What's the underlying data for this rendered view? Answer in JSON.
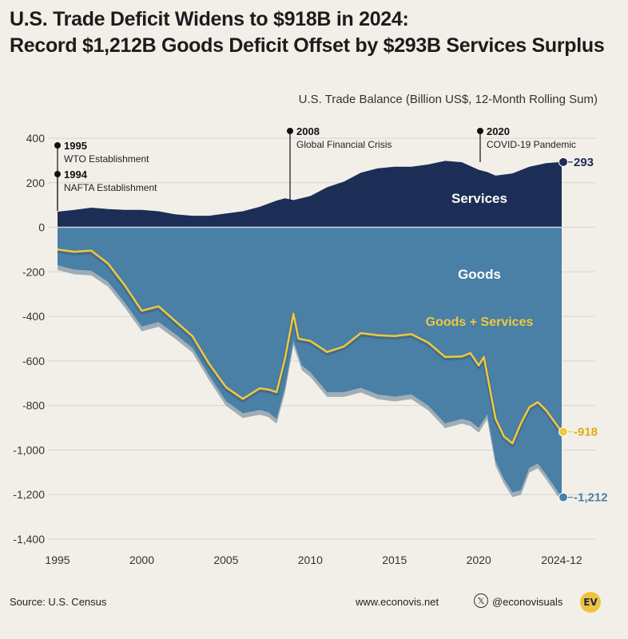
{
  "title_line1": "U.S. Trade Deficit Widens to $918B in 2024:",
  "title_line2": "Record $1,212B Goods Deficit Offset by $293B Services Surplus",
  "footer": {
    "source": "Source: U.S. Census",
    "website": "www.econovis.net",
    "handle": "@econovisuals",
    "logo_text": "EV",
    "x_icon": "x-logo-icon"
  },
  "colors": {
    "background": "#f2efe9",
    "services": "#1c2e56",
    "goods": "#4a7fa6",
    "goods_plus_services": "#f0c93c"
  },
  "chart_data": {
    "type": "area",
    "title": "",
    "subtitle": "U.S. Trade Balance (Billion US$, 12-Month Rolling Sum)",
    "xlabel": "",
    "ylabel": "",
    "xlim": [
      1995,
      2024.92
    ],
    "ylim": [
      -1400,
      400
    ],
    "x_ticks": [
      1995,
      2000,
      2005,
      2010,
      2015,
      2020,
      2024.92
    ],
    "x_tick_labels": [
      "1995",
      "2000",
      "2005",
      "2010",
      "2015",
      "2020",
      "2024-12"
    ],
    "y_ticks": [
      400,
      200,
      0,
      -200,
      -400,
      -600,
      -800,
      -1000,
      -1200,
      -1400
    ],
    "y_tick_labels": [
      "400",
      "200",
      "0",
      "-200",
      "-400",
      "-600",
      "-800",
      "-1,000",
      "-1,200",
      "-1,400"
    ],
    "series": [
      {
        "name": "Services",
        "x": [
          1995,
          1996,
          1997,
          1998,
          1999,
          2000,
          2001,
          2002,
          2003,
          2004,
          2005,
          2006,
          2007,
          2008,
          2008.5,
          2009,
          2010,
          2011,
          2012,
          2013,
          2014,
          2015,
          2016,
          2017,
          2018,
          2019,
          2020,
          2020.5,
          2021,
          2022,
          2023,
          2024,
          2024.92
        ],
        "values": [
          70,
          78,
          88,
          82,
          78,
          78,
          72,
          58,
          52,
          52,
          62,
          72,
          92,
          120,
          130,
          122,
          140,
          180,
          205,
          245,
          265,
          272,
          272,
          282,
          298,
          292,
          258,
          248,
          232,
          242,
          272,
          288,
          293
        ]
      },
      {
        "name": "Goods",
        "x": [
          1995,
          1996,
          1997,
          1998,
          1999,
          2000,
          2001,
          2002,
          2003,
          2004,
          2005,
          2006,
          2007,
          2007.5,
          2008,
          2008.5,
          2009,
          2009.5,
          2010,
          2011,
          2012,
          2013,
          2014,
          2015,
          2016,
          2017,
          2018,
          2019,
          2019.5,
          2020,
          2020.5,
          2021,
          2021.5,
          2022,
          2022.5,
          2023,
          2023.5,
          2024,
          2024.92
        ],
        "values": [
          -170,
          -190,
          -195,
          -245,
          -340,
          -445,
          -425,
          -480,
          -540,
          -665,
          -780,
          -835,
          -820,
          -830,
          -860,
          -720,
          -510,
          -620,
          -650,
          -740,
          -740,
          -720,
          -750,
          -760,
          -750,
          -800,
          -880,
          -860,
          -870,
          -900,
          -840,
          -1050,
          -1130,
          -1190,
          -1180,
          -1080,
          -1060,
          -1110,
          -1212
        ]
      },
      {
        "name": "Goods + Services",
        "x": [
          1995,
          1996,
          1997,
          1998,
          1999,
          2000,
          2001,
          2002,
          2003,
          2004,
          2005,
          2006,
          2007,
          2007.5,
          2008,
          2008.5,
          2009,
          2009.3,
          2010,
          2011,
          2012,
          2013,
          2014,
          2015,
          2016,
          2017,
          2018,
          2019,
          2019.5,
          2020,
          2020.3,
          2021,
          2021.5,
          2022,
          2022.5,
          2023,
          2023.5,
          2024,
          2024.92
        ],
        "values": [
          -100,
          -110,
          -105,
          -163,
          -262,
          -375,
          -355,
          -422,
          -488,
          -613,
          -718,
          -770,
          -723,
          -728,
          -740,
          -590,
          -388,
          -500,
          -510,
          -560,
          -535,
          -475,
          -485,
          -488,
          -480,
          -518,
          -582,
          -580,
          -565,
          -620,
          -582,
          -860,
          -940,
          -970,
          -880,
          -808,
          -785,
          -822,
          -918
        ]
      }
    ],
    "series_labels": [
      "Services",
      "Goods",
      "Goods + Services"
    ],
    "end_labels": [
      "293",
      "-1,212",
      "-918"
    ],
    "annotations": [
      {
        "x": 1995,
        "year": "1995",
        "text": "WTO Establishment"
      },
      {
        "x": 1994,
        "year": "1994",
        "text": "NAFTA Establishment"
      },
      {
        "x": 2008.5,
        "year": "2008",
        "text": "Global Financial Crisis"
      },
      {
        "x": 2020,
        "year": "2020",
        "text": "COVID-19 Pandemic"
      }
    ],
    "grid": true,
    "legend": "inline"
  }
}
